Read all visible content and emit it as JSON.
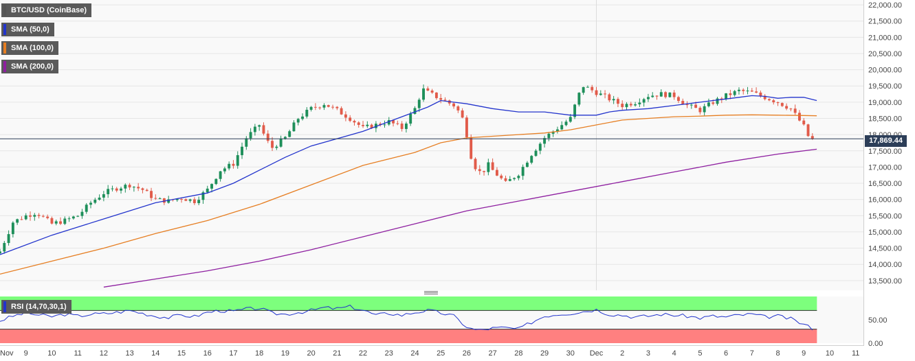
{
  "chart_data": {
    "type": "candlestick",
    "instrument": "BTC/USD (CoinBase)",
    "legend": [
      {
        "name": "BTC/USD (CoinBase)",
        "color": "#555555"
      },
      {
        "name": "SMA (50,0)",
        "color": "#2233cc"
      },
      {
        "name": "SMA (100,0)",
        "color": "#e67e22"
      },
      {
        "name": "SMA (200,0)",
        "color": "#8e1fa0"
      }
    ],
    "price_axis": {
      "ylim": [
        13200,
        22150
      ],
      "ticks": [
        "13,500.00",
        "14,000.00",
        "14,500.00",
        "15,000.00",
        "15,500.00",
        "16,000.00",
        "16,500.00",
        "17,000.00",
        "17,500.00",
        "18,000.00",
        "18,500.00",
        "19,000.00",
        "19,500.00",
        "20,000.00",
        "20,500.00",
        "21,000.00",
        "21,500.00",
        "22,000.00"
      ],
      "tick_values": [
        13500,
        14000,
        14500,
        15000,
        15500,
        16000,
        16500,
        17000,
        17500,
        18000,
        18500,
        19000,
        19500,
        20000,
        20500,
        21000,
        21500,
        22000
      ]
    },
    "current_price": {
      "value": 17869.44,
      "label": "17,869.44"
    },
    "x_axis": {
      "labels": [
        "Nov",
        "9",
        "10",
        "11",
        "12",
        "13",
        "14",
        "15",
        "16",
        "17",
        "18",
        "19",
        "20",
        "21",
        "22",
        "23",
        "24",
        "25",
        "26",
        "27",
        "28",
        "29",
        "30",
        "Dec",
        "2",
        "3",
        "4",
        "5",
        "6",
        "7",
        "8",
        "9",
        "10",
        "11"
      ],
      "day_index": [
        8,
        9,
        10,
        11,
        12,
        13,
        14,
        15,
        16,
        17,
        18,
        19,
        20,
        21,
        22,
        23,
        24,
        25,
        26,
        27,
        28,
        29,
        30,
        31,
        32,
        33,
        34,
        35,
        36,
        37,
        38,
        39,
        40,
        41
      ],
      "xlim": [
        8.0,
        41.3
      ],
      "vline_at": 31
    },
    "close_anchors": {
      "x": [
        8.0,
        8.5,
        9.0,
        9.4,
        10.0,
        10.5,
        11.0,
        11.5,
        12.0,
        12.5,
        13.0,
        13.5,
        14.0,
        14.5,
        15.0,
        15.5,
        16.0,
        16.5,
        17.0,
        17.5,
        18.0,
        18.3,
        18.5,
        19.0,
        19.5,
        20.0,
        20.5,
        21.0,
        21.5,
        22.0,
        22.5,
        23.0,
        23.5,
        24.0,
        24.3,
        24.5,
        25.0,
        25.5,
        25.8,
        26.0,
        26.2,
        26.4,
        26.6,
        26.8,
        27.0,
        27.5,
        28.0,
        28.5,
        29.0,
        29.5,
        30.0,
        30.3,
        30.5,
        31.0,
        31.5,
        32.0,
        32.5,
        33.0,
        33.5,
        34.0,
        34.5,
        35.0,
        35.5,
        36.0,
        36.5,
        37.0,
        37.5,
        38.0,
        38.5,
        39.0,
        39.2,
        39.4
      ],
      "close": [
        14400,
        15300,
        15500,
        15600,
        15250,
        15350,
        15500,
        15900,
        16200,
        16350,
        16450,
        16300,
        16000,
        15950,
        16050,
        15950,
        16300,
        16900,
        17100,
        17900,
        18300,
        17800,
        17600,
        17900,
        18500,
        18800,
        18950,
        18750,
        18500,
        18200,
        18300,
        18400,
        18200,
        18800,
        19400,
        19300,
        19100,
        18900,
        18600,
        18000,
        17200,
        16900,
        16800,
        17100,
        16900,
        16500,
        16800,
        17400,
        17900,
        18200,
        18500,
        19200,
        19500,
        19300,
        19100,
        18900,
        19000,
        19200,
        19250,
        19200,
        18900,
        18750,
        19000,
        19200,
        19350,
        19300,
        19150,
        19000,
        18800,
        18250,
        17900,
        17869
      ]
    },
    "sma_50": {
      "name": "SMA (50,0)",
      "x": [
        8.0,
        10.0,
        12.0,
        14.0,
        16.0,
        17.0,
        18.0,
        19.0,
        20.0,
        22.0,
        23.5,
        24.5,
        25.0,
        25.5,
        26.0,
        27.0,
        28.0,
        29.0,
        30.0,
        31.0,
        31.5,
        32.0,
        33.0,
        34.0,
        35.0,
        35.5,
        36.0,
        36.5,
        37.0,
        37.5,
        38.0,
        38.5,
        39.0,
        39.5
      ],
      "y": [
        14300,
        14900,
        15400,
        15900,
        16200,
        16500,
        16900,
        17300,
        17650,
        18100,
        18550,
        18850,
        19050,
        19000,
        18950,
        18800,
        18700,
        18700,
        18600,
        18600,
        18700,
        18750,
        18800,
        18900,
        19000,
        19050,
        19100,
        19150,
        19200,
        19180,
        19120,
        19150,
        19150,
        19050
      ]
    },
    "sma_100": {
      "name": "SMA (100,0)",
      "x": [
        8.0,
        10.0,
        12.0,
        14.0,
        16.0,
        18.0,
        20.0,
        22.0,
        24.0,
        25.0,
        26.0,
        27.0,
        28.0,
        29.0,
        30.0,
        31.0,
        32.0,
        33.0,
        34.0,
        35.0,
        36.0,
        37.0,
        38.0,
        39.0,
        39.5
      ],
      "y": [
        13700,
        14100,
        14500,
        14950,
        15350,
        15850,
        16450,
        17050,
        17450,
        17750,
        17900,
        17950,
        18000,
        18050,
        18150,
        18300,
        18450,
        18500,
        18550,
        18570,
        18600,
        18610,
        18600,
        18590,
        18580
      ]
    },
    "sma_200": {
      "name": "SMA (200,0)",
      "x": [
        12.0,
        14.0,
        16.0,
        18.0,
        20.0,
        22.0,
        24.0,
        26.0,
        28.0,
        30.0,
        32.0,
        34.0,
        36.0,
        38.0,
        39.5
      ],
      "y": [
        13300,
        13550,
        13800,
        14100,
        14450,
        14850,
        15250,
        15650,
        15950,
        16250,
        16550,
        16850,
        17150,
        17400,
        17550
      ]
    },
    "rsi": {
      "label": "RSI (14,70,30,1)",
      "ylim": [
        0,
        100
      ],
      "overbought": 70,
      "oversold": 30,
      "ticks": [
        "0.00",
        "50.00"
      ],
      "tick_values": [
        0,
        50
      ],
      "x": [
        8.0,
        8.5,
        9.0,
        9.5,
        10.0,
        10.5,
        11.0,
        11.5,
        12.0,
        12.5,
        13.0,
        13.5,
        14.0,
        14.5,
        15.0,
        15.5,
        16.0,
        16.5,
        17.0,
        17.5,
        18.0,
        18.5,
        19.0,
        19.5,
        20.0,
        20.5,
        21.0,
        21.5,
        22.0,
        22.5,
        23.0,
        23.5,
        24.0,
        24.5,
        25.0,
        25.5,
        26.0,
        26.2,
        26.5,
        27.0,
        27.5,
        28.0,
        28.5,
        29.0,
        29.5,
        30.0,
        30.5,
        31.0,
        31.5,
        32.0,
        32.5,
        33.0,
        33.5,
        34.0,
        34.5,
        35.0,
        35.5,
        36.0,
        36.5,
        37.0,
        37.5,
        38.0,
        38.5,
        39.0,
        39.4
      ],
      "y": [
        48,
        58,
        65,
        60,
        57,
        62,
        58,
        62,
        63,
        66,
        70,
        64,
        58,
        55,
        60,
        57,
        66,
        70,
        68,
        73,
        75,
        64,
        62,
        66,
        70,
        76,
        74,
        78,
        71,
        60,
        64,
        60,
        66,
        70,
        65,
        58,
        35,
        30,
        28,
        32,
        33,
        30,
        45,
        58,
        62,
        64,
        68,
        72,
        62,
        60,
        56,
        58,
        62,
        60,
        58,
        54,
        58,
        56,
        60,
        62,
        56,
        58,
        52,
        40,
        30
      ]
    }
  }
}
